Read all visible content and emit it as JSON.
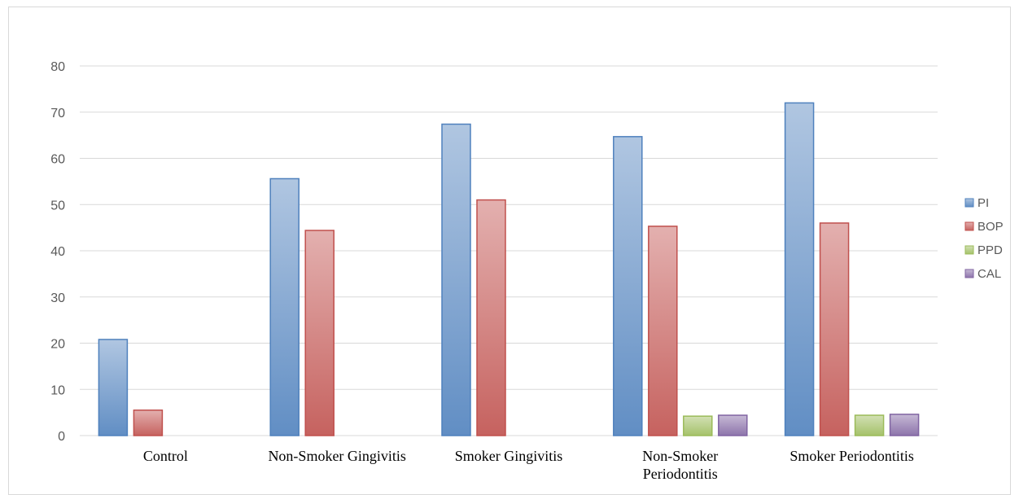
{
  "chart_data": {
    "type": "bar",
    "title": "",
    "xlabel": "",
    "ylabel": "",
    "ylim": [
      0,
      80
    ],
    "yticks": [
      0,
      10,
      20,
      30,
      40,
      50,
      60,
      70,
      80
    ],
    "grid": true,
    "legend_position": "right",
    "categories": [
      [
        "Control"
      ],
      [
        "Non-Smoker Gingivitis"
      ],
      [
        "Smoker Gingivitis"
      ],
      [
        "Non-Smoker",
        "Periodontitis"
      ],
      [
        "Smoker Periodontitis"
      ]
    ],
    "series": [
      {
        "name": "PI",
        "color": "#4f81bd",
        "values": [
          20.8,
          55.6,
          67.4,
          64.7,
          72.0
        ]
      },
      {
        "name": "BOP",
        "color": "#c0504d",
        "values": [
          5.5,
          44.4,
          51.0,
          45.3,
          46.0
        ]
      },
      {
        "name": "PPD",
        "color": "#9bbb59",
        "values": [
          0,
          0,
          0,
          4.2,
          4.4
        ]
      },
      {
        "name": "CAL",
        "color": "#8064a2",
        "values": [
          0,
          0,
          0,
          4.4,
          4.6
        ]
      }
    ]
  }
}
